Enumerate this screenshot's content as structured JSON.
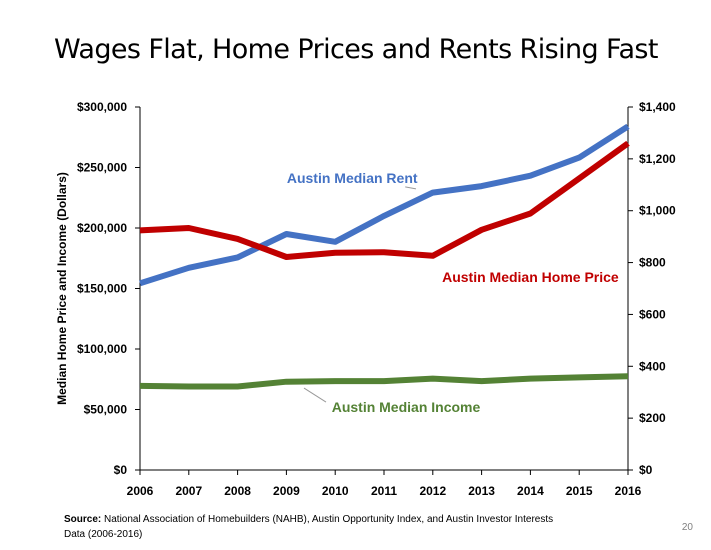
{
  "slide": {
    "title": "Wages Flat, Home Prices and Rents Rising Fast",
    "source_label": "Source:",
    "source_text": "National Association of Homebuilders (NAHB), Austin Opportunity Index, and Austin Investor Interests Data (2006-2016)",
    "page_number": "20"
  },
  "chart_data": {
    "type": "line",
    "x": [
      "2006",
      "2007",
      "2008",
      "2009",
      "2010",
      "2011",
      "2012",
      "2013",
      "2014",
      "2015",
      "2016"
    ],
    "ylabel": "Median Home Price and Income (Dollars)",
    "ylim": [
      0,
      300000
    ],
    "y_ticks": [
      "$0",
      "$50,000",
      "$100,000",
      "$150,000",
      "$200,000",
      "$250,000",
      "$300,000"
    ],
    "y2lim": [
      0,
      1400
    ],
    "y2_ticks": [
      "$0",
      "$200",
      "$400",
      "$600",
      "$800",
      "$1,000",
      "$1,200",
      "$1,400"
    ],
    "grid": false,
    "legend": "inline labels",
    "series": [
      {
        "name": "Austin Median Rent",
        "axis": "right",
        "color": "#4472C4",
        "values": [
          720,
          780,
          820,
          910,
          880,
          980,
          1070,
          1095,
          1135,
          1205,
          1325
        ]
      },
      {
        "name": "Austin Median Home Price",
        "axis": "left",
        "color": "#C00000",
        "values": [
          198000,
          200000,
          191000,
          176000,
          179500,
          180000,
          177000,
          198500,
          212000,
          241000,
          270000
        ]
      },
      {
        "name": "Austin Median Income",
        "axis": "left",
        "color": "#548235",
        "values": [
          69500,
          69000,
          69000,
          73000,
          73500,
          73500,
          75500,
          73500,
          75500,
          76500,
          77500
        ]
      }
    ]
  }
}
